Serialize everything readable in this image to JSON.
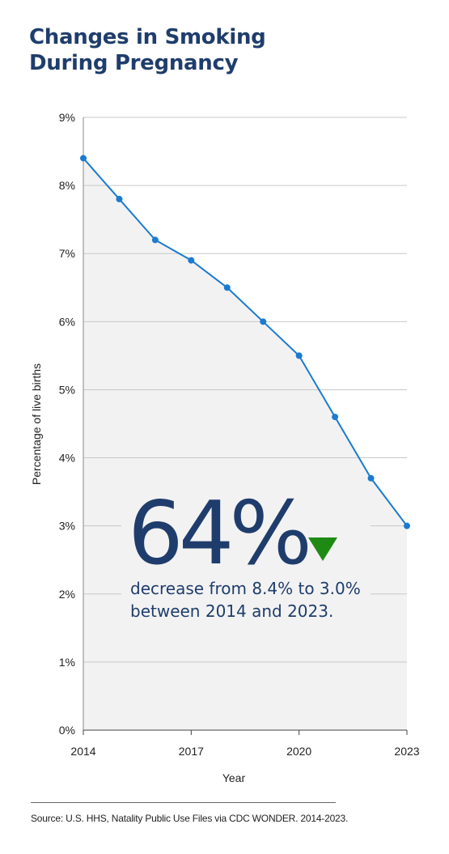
{
  "chart_data": {
    "type": "area",
    "title_lines": [
      "Changes in Smoking",
      "During Pregnancy"
    ],
    "xlabel": "Year",
    "ylabel": "Percentage of live births",
    "x": [
      2014,
      2015,
      2016,
      2017,
      2018,
      2019,
      2020,
      2021,
      2022,
      2023
    ],
    "series": [
      {
        "values": [
          8.4,
          7.8,
          7.2,
          6.9,
          6.5,
          6.0,
          5.5,
          4.6,
          3.7,
          3.0
        ]
      }
    ],
    "xlim": [
      2014,
      2023
    ],
    "ylim": [
      0,
      9
    ],
    "x_ticks": [
      2014,
      2017,
      2020,
      2023
    ],
    "y_ticks": [
      {
        "value": 0,
        "label": "0%"
      },
      {
        "value": 1,
        "label": "1%"
      },
      {
        "value": 2,
        "label": "2%"
      },
      {
        "value": 3,
        "label": "3%"
      },
      {
        "value": 4,
        "label": "4%"
      },
      {
        "value": 5,
        "label": "5%"
      },
      {
        "value": 6,
        "label": "6%"
      },
      {
        "value": 7,
        "label": "7%"
      },
      {
        "value": 8,
        "label": "8%"
      },
      {
        "value": 9,
        "label": "9%"
      }
    ],
    "grid": "horizontal",
    "callout": {
      "value": "64%",
      "line1": "decrease from 8.4% to 3.0%",
      "line2": "between 2014 and 2023."
    },
    "source": "Source: U.S. HHS, Natality Public Use Files via CDC WONDER. 2014-2023."
  },
  "colors": {
    "title": "#1f3d6c",
    "line": "#1a7bd0",
    "area": "#f2f2f2",
    "grid": "#c8c8c8",
    "arrow": "#1f8a13"
  }
}
